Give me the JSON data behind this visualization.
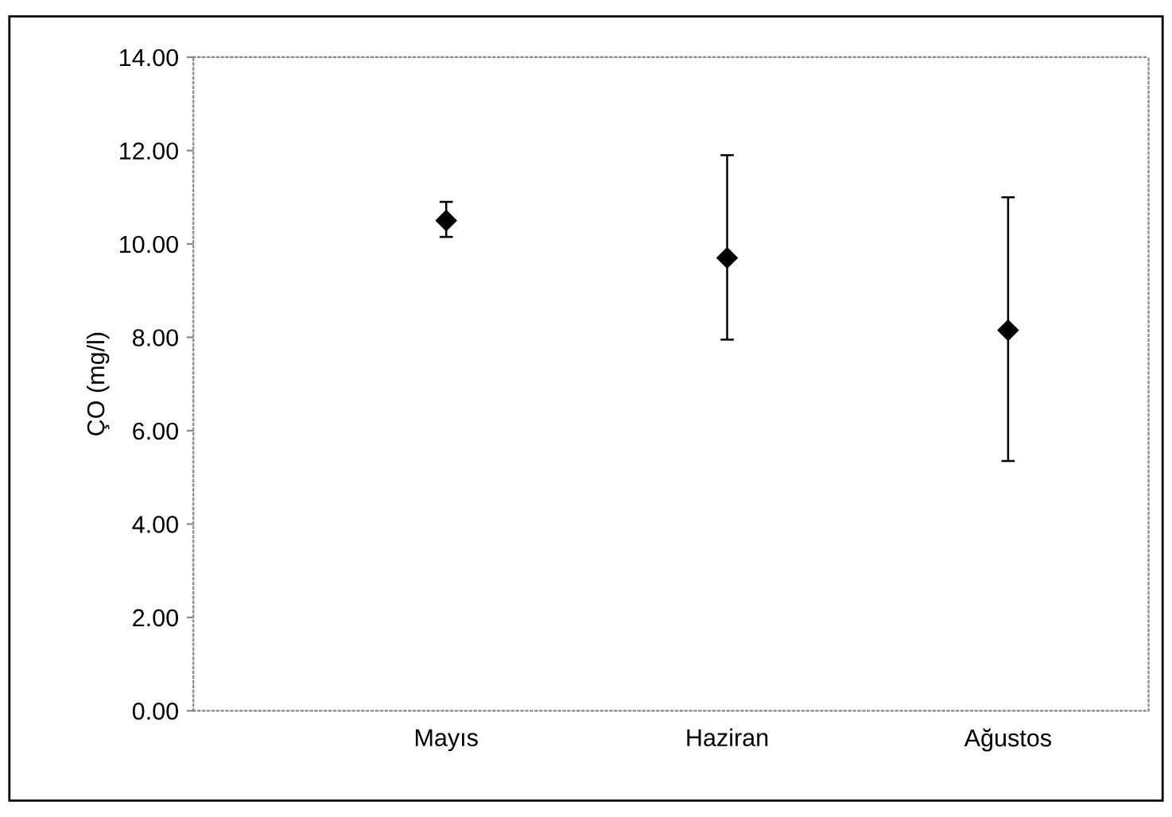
{
  "chart_data": {
    "type": "scatter",
    "ylabel": "ÇO (mg/l)",
    "categories": [
      "Mayıs",
      "Haziran",
      "Ağustos"
    ],
    "series": [
      {
        "color": "#000000",
        "values": [
          10.5,
          9.7,
          8.15
        ],
        "errors": [
          [
            10.15,
            10.9
          ],
          [
            7.95,
            11.9
          ],
          [
            5.35,
            11.0
          ]
        ]
      }
    ],
    "ylim": [
      0,
      14
    ],
    "yticks": [
      {
        "value": 0,
        "label": "0.00"
      },
      {
        "value": 2,
        "label": "2.00"
      },
      {
        "value": 4,
        "label": "4.00"
      },
      {
        "value": 6,
        "label": "6.00"
      },
      {
        "value": 8,
        "label": "8.00"
      },
      {
        "value": 10,
        "label": "10.00"
      },
      {
        "value": 12,
        "label": "12.00"
      },
      {
        "value": 14,
        "label": "14.00"
      }
    ],
    "marker": "diamond",
    "grid": false,
    "legend": false
  }
}
